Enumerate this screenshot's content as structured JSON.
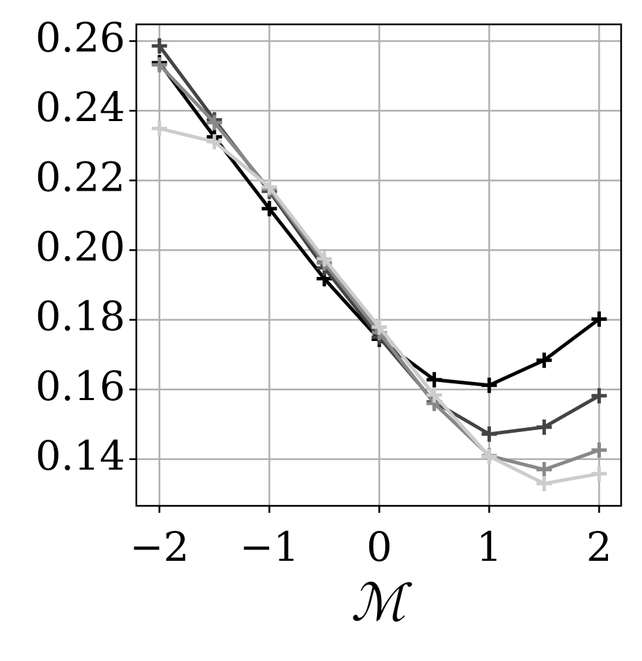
{
  "chart_data": {
    "type": "line",
    "x_label": "ℳ",
    "x": [
      -2,
      -1.5,
      -1,
      -0.5,
      0,
      0.5,
      1,
      1.5,
      2
    ],
    "series": [
      {
        "color": "#000000",
        "values": [
          0.2538,
          0.2325,
          0.2119,
          0.1918,
          0.1744,
          0.1628,
          0.1612,
          0.1684,
          0.1802
        ]
      },
      {
        "color": "#444444",
        "values": [
          0.2586,
          0.2374,
          0.2169,
          0.1949,
          0.175,
          0.1564,
          0.1472,
          0.1492,
          0.1582
        ]
      },
      {
        "color": "#888888",
        "values": [
          0.2532,
          0.2366,
          0.2175,
          0.1963,
          0.1763,
          0.156,
          0.141,
          0.137,
          0.1426
        ]
      },
      {
        "color": "#cccccc",
        "values": [
          0.2349,
          0.2311,
          0.2181,
          0.1975,
          0.1779,
          0.1584,
          0.1408,
          0.133,
          0.1358
        ]
      }
    ],
    "marker": "+",
    "xlim": [
      -2.21,
      2.2
    ],
    "ylim": [
      0.1266,
      0.2648
    ],
    "xticks": [
      {
        "value": -2,
        "label": "−2"
      },
      {
        "value": -1,
        "label": "−1"
      },
      0,
      1,
      2
    ],
    "yticks": [
      0.14,
      0.16,
      0.18,
      {
        "value": 0.2,
        "label": "0.20"
      },
      0.22,
      0.24,
      0.26
    ],
    "grid": true
  }
}
